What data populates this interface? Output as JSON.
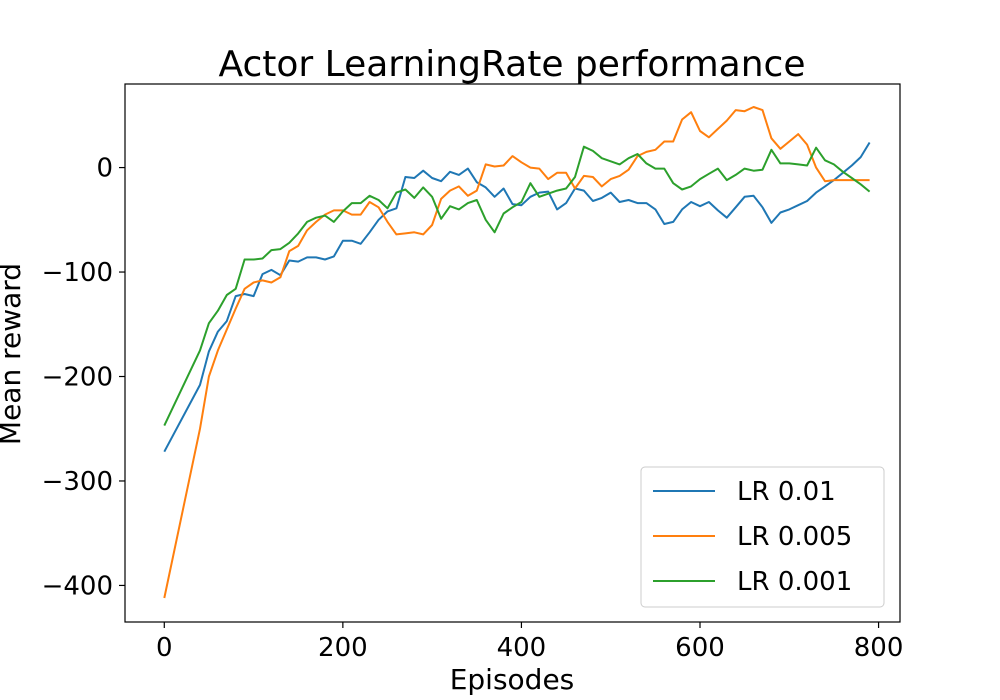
{
  "chart_data": {
    "type": "line",
    "title": "Actor LearningRate performance",
    "xlabel": "Episodes",
    "ylabel": "Mean reward",
    "xlim": [
      -44,
      824
    ],
    "ylim": [
      -435,
      80
    ],
    "xticks": [
      0,
      200,
      400,
      600,
      800
    ],
    "yticks": [
      0,
      -100,
      -200,
      -300,
      -400
    ],
    "xtick_labels": [
      "0",
      "200",
      "400",
      "600",
      "800"
    ],
    "ytick_labels": [
      "0",
      "−100",
      "−200",
      "−300",
      "−400"
    ],
    "grid": false,
    "legend_position": "lower-right",
    "x": [
      0,
      40,
      50,
      60,
      70,
      80,
      90,
      100,
      110,
      120,
      130,
      140,
      150,
      160,
      170,
      180,
      190,
      200,
      210,
      220,
      230,
      240,
      250,
      260,
      270,
      280,
      290,
      300,
      310,
      320,
      330,
      340,
      350,
      360,
      370,
      380,
      390,
      400,
      410,
      420,
      430,
      440,
      450,
      460,
      470,
      480,
      490,
      500,
      510,
      520,
      530,
      540,
      550,
      560,
      570,
      580,
      590,
      600,
      610,
      620,
      630,
      640,
      650,
      660,
      670,
      680,
      690,
      700,
      710,
      720,
      730,
      740,
      750,
      760,
      770,
      780,
      790
    ],
    "series": [
      {
        "name": "LR 0.01",
        "color": "#1f77b4",
        "values": [
          -272,
          -208,
          -176,
          -157,
          -147,
          -123,
          -121,
          -123,
          -102,
          -98,
          -103,
          -89,
          -90,
          -86,
          -86,
          -88,
          -85,
          -70,
          -70,
          -73,
          -62,
          -50,
          -42,
          -39,
          -9,
          -10,
          -3,
          -10,
          -13,
          -4,
          -7,
          -1,
          -14,
          -19,
          -28,
          -20,
          -35,
          -36,
          -28,
          -24,
          -23,
          -40,
          -34,
          -20,
          -22,
          -32,
          -29,
          -24,
          -33,
          -31,
          -34,
          -34,
          -40,
          -54,
          -52,
          -40,
          -33,
          -37,
          -33,
          -41,
          -48,
          -38,
          -28,
          -27,
          -38,
          -53,
          -43,
          -40,
          -36,
          -32,
          -24,
          -18,
          -12,
          -5,
          2,
          10,
          24
        ]
      },
      {
        "name": "LR 0.005",
        "color": "#ff7f0e",
        "values": [
          -412,
          -250,
          -200,
          -175,
          -155,
          -135,
          -116,
          -110,
          -108,
          -110,
          -105,
          -80,
          -75,
          -60,
          -52,
          -45,
          -41,
          -41,
          -45,
          -45,
          -33,
          -38,
          -52,
          -64,
          -63,
          -62,
          -64,
          -55,
          -30,
          -22,
          -18,
          -27,
          -22,
          3,
          1,
          2,
          11,
          5,
          0,
          -1,
          -11,
          -5,
          -5,
          -20,
          -8,
          -9,
          -18,
          -11,
          -8,
          -2,
          11,
          15,
          17,
          25,
          25,
          46,
          53,
          35,
          29,
          37,
          45,
          55,
          54,
          58,
          55,
          28,
          18,
          25,
          32,
          22,
          0,
          -13,
          -12,
          -12,
          -12,
          -12,
          -12
        ]
      },
      {
        "name": "LR 0.001",
        "color": "#2ca02c",
        "values": [
          -247,
          -175,
          -149,
          -137,
          -122,
          -116,
          -88,
          -88,
          -87,
          -79,
          -78,
          -72,
          -63,
          -52,
          -48,
          -46,
          -52,
          -42,
          -34,
          -34,
          -27,
          -31,
          -39,
          -24,
          -21,
          -29,
          -19,
          -28,
          -49,
          -37,
          -40,
          -34,
          -31,
          -50,
          -62,
          -44,
          -38,
          -33,
          -15,
          -28,
          -25,
          -22,
          -20,
          -9,
          20,
          16,
          9,
          6,
          3,
          9,
          13,
          4,
          -1,
          -1,
          -15,
          -21,
          -18,
          -11,
          -6,
          -1,
          -12,
          -7,
          -1,
          -3,
          -2,
          17,
          4,
          4,
          3,
          2,
          19,
          7,
          3,
          -4,
          -10,
          -16,
          -23
        ]
      }
    ]
  }
}
